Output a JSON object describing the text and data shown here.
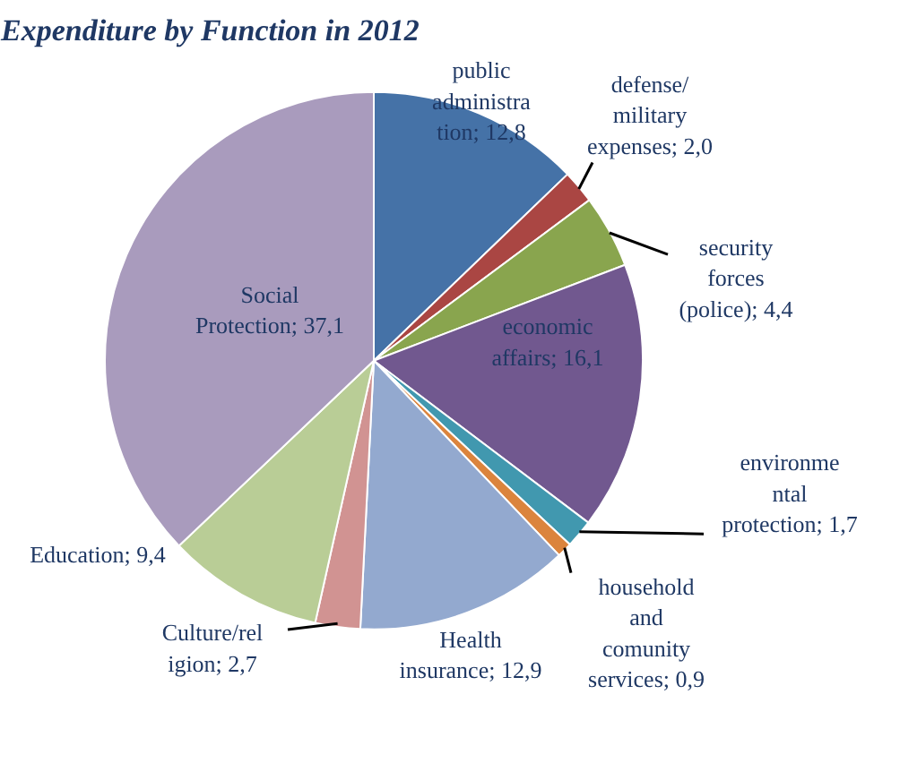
{
  "chart_data": {
    "type": "pie",
    "title": "Expenditure by Function in 2012",
    "categories": [
      "public administration",
      "defense/ military expenses",
      "security forces (police)",
      "economic affairs",
      "environmental protection",
      "household and comunity services",
      "Health insurance",
      "Culture/religion",
      "Education",
      "Social Protection"
    ],
    "values": [
      12.8,
      2.0,
      4.4,
      16.1,
      1.7,
      0.9,
      12.9,
      2.7,
      9.4,
      37.1
    ],
    "value_labels": [
      "12,8",
      "2,0",
      "4,4",
      "16,1",
      "1,7",
      "0,9",
      "12,9",
      "2,7",
      "9,4",
      "37,1"
    ],
    "colors": [
      "#4572a7",
      "#aa4643",
      "#89a54e",
      "#71588f",
      "#4198af",
      "#db843d",
      "#93a9cf",
      "#d19392",
      "#b9cd96",
      "#a99bbd"
    ]
  }
}
